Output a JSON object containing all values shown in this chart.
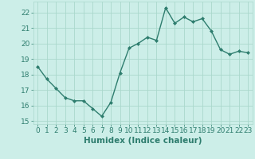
{
  "x": [
    0,
    1,
    2,
    3,
    4,
    5,
    6,
    7,
    8,
    9,
    10,
    11,
    12,
    13,
    14,
    15,
    16,
    17,
    18,
    19,
    20,
    21,
    22,
    23
  ],
  "y": [
    18.5,
    17.7,
    17.1,
    16.5,
    16.3,
    16.3,
    15.8,
    15.3,
    16.2,
    18.1,
    19.7,
    20.0,
    20.4,
    20.2,
    22.3,
    21.3,
    21.7,
    21.4,
    21.6,
    20.8,
    19.6,
    19.3,
    19.5,
    19.4
  ],
  "line_color": "#2e7d6e",
  "marker": "D",
  "marker_size": 2.0,
  "bg_color": "#cceee8",
  "grid_color": "#aad8cc",
  "xlabel": "Humidex (Indice chaleur)",
  "ylim": [
    14.8,
    22.7
  ],
  "xlim": [
    -0.5,
    23.5
  ],
  "yticks": [
    15,
    16,
    17,
    18,
    19,
    20,
    21,
    22
  ],
  "xticks": [
    0,
    1,
    2,
    3,
    4,
    5,
    6,
    7,
    8,
    9,
    10,
    11,
    12,
    13,
    14,
    15,
    16,
    17,
    18,
    19,
    20,
    21,
    22,
    23
  ],
  "xlabel_fontsize": 7.5,
  "tick_fontsize": 6.5,
  "line_width": 1.0
}
